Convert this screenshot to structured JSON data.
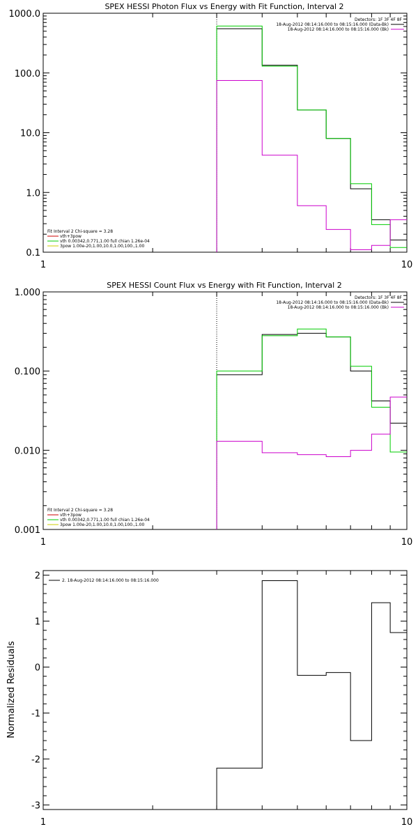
{
  "chart_data": [
    {
      "type": "line",
      "title": "SPEX HESSI Photon Flux vs Energy with Fit Function, Interval 2",
      "xscale": "log",
      "yscale": "log",
      "xlim": [
        1,
        10
      ],
      "ylim": [
        0.1,
        1000
      ],
      "xticks": [
        "1",
        "10"
      ],
      "yticks": [
        {
          "v": 1000,
          "label": "1000.0"
        },
        {
          "v": 100,
          "label": "100.0"
        },
        {
          "v": 10,
          "label": "10.0"
        },
        {
          "v": 1,
          "label": "1.0"
        },
        {
          "v": 0.1,
          "label": "0.1"
        }
      ],
      "legend_tr": {
        "header": "Detectors: 1F 3F 4F 8F",
        "entries": [
          {
            "label": "18-Aug-2012 08:14:16.000 to 08:15:16.000 (Data-Bk)",
            "color": "#000000"
          },
          {
            "label": "18-Aug-2012 08:14:16.000 to 08:15:16.000 (Bk)",
            "color": "#cc00cc"
          }
        ]
      },
      "legend_bl": {
        "header": "Fit Interval 2   Chi-square = 3.28",
        "entries": [
          {
            "label": "vth+3pow",
            "color": "#cc0000"
          },
          {
            "label": "vth 0.00342,0.771,1.00  full chian 1.26e-04",
            "color": "#00cc00"
          },
          {
            "label": "3pow 1.00e-20,1.00,10.0,1.00,100.,1.00",
            "color": "#cccc00"
          }
        ]
      },
      "vline_x": 3.0,
      "series": [
        {
          "name": "18-Aug-2012 08:14:16.000 to 08:15:16.000 (Data-Bk)",
          "color": "#000000",
          "edges": [
            3.0,
            4.0,
            5.0,
            6.0,
            7.0,
            8.0,
            9.0,
            10.0
          ],
          "values": [
            550,
            135,
            24,
            8,
            1.15,
            0.35,
            0.16
          ]
        },
        {
          "name": "vth+3pow",
          "color": "#00cc00",
          "edges": [
            3.0,
            4.0,
            5.0,
            6.0,
            7.0,
            8.0,
            9.0,
            10.0
          ],
          "values": [
            610,
            130,
            24,
            8,
            1.4,
            0.29,
            0.12
          ]
        },
        {
          "name": "18-Aug-2012 08:14:16.000 to 08:15:16.000 (Bk)",
          "color": "#cc00cc",
          "edges": [
            3.0,
            4.0,
            5.0,
            6.0,
            7.0,
            8.0,
            9.0,
            10.0
          ],
          "values": [
            75,
            4.2,
            0.6,
            0.24,
            0.11,
            0.13,
            0.35
          ]
        }
      ]
    },
    {
      "type": "line",
      "title": "SPEX HESSI Count Flux vs Energy with Fit Function, Interval 2",
      "xscale": "log",
      "yscale": "log",
      "xlim": [
        1,
        10
      ],
      "ylim": [
        0.001,
        1
      ],
      "xticks": [
        "1",
        "10"
      ],
      "yticks": [
        {
          "v": 1,
          "label": "1.000"
        },
        {
          "v": 0.1,
          "label": "0.100"
        },
        {
          "v": 0.01,
          "label": "0.010"
        },
        {
          "v": 0.001,
          "label": "0.001"
        }
      ],
      "legend_tr": {
        "header": "Detectors: 1F 3F 4F 8F",
        "entries": [
          {
            "label": "18-Aug-2012 08:14:16.000 to 08:15:16.000 (Data-Bk)",
            "color": "#000000"
          },
          {
            "label": "18-Aug-2012 08:14:16.000 to 08:15:16.000 (Bk)",
            "color": "#cc00cc"
          }
        ]
      },
      "legend_bl": {
        "header": "Fit Interval 2   Chi-square = 3.28",
        "entries": [
          {
            "label": "vth+3pow",
            "color": "#cc0000"
          },
          {
            "label": "vth 0.00342,0.771,1.00  full chian 1.26e-04",
            "color": "#00cc00"
          },
          {
            "label": "3pow 1.00e-20,1.00,10.0,1.00,100.,1.00",
            "color": "#cccc00"
          }
        ]
      },
      "vline_x": 3.0,
      "series": [
        {
          "name": "18-Aug-2012 08:14:16.000 to 08:15:16.000 (Data-Bk)",
          "color": "#000000",
          "edges": [
            3.0,
            4.0,
            5.0,
            6.0,
            7.0,
            8.0,
            9.0,
            10.0
          ],
          "values": [
            0.09,
            0.29,
            0.3,
            0.27,
            0.1,
            0.042,
            0.022
          ]
        },
        {
          "name": "vth+3pow",
          "color": "#00cc00",
          "edges": [
            3.0,
            4.0,
            5.0,
            6.0,
            7.0,
            8.0,
            9.0,
            10.0
          ],
          "values": [
            0.1,
            0.28,
            0.34,
            0.27,
            0.115,
            0.035,
            0.0095
          ]
        },
        {
          "name": "18-Aug-2012 08:14:16.000 to 08:15:16.000 (Bk)",
          "color": "#cc00cc",
          "edges": [
            3.0,
            4.0,
            5.0,
            6.0,
            7.0,
            8.0,
            9.0,
            10.0
          ],
          "values": [
            0.013,
            0.0093,
            0.0088,
            0.0083,
            0.01,
            0.016,
            0.047
          ]
        }
      ]
    },
    {
      "type": "line",
      "title": "",
      "ylabel": "Normalized Residuals",
      "xscale": "log",
      "yscale": "linear",
      "xlim": [
        1,
        10
      ],
      "ylim": [
        -3.1,
        2.1
      ],
      "xticks": [
        "1",
        "10"
      ],
      "yticks": [
        {
          "v": 2,
          "label": "2"
        },
        {
          "v": 1,
          "label": "1"
        },
        {
          "v": 0,
          "label": "0"
        },
        {
          "v": -1,
          "label": "-1"
        },
        {
          "v": -2,
          "label": "-2"
        },
        {
          "v": -3,
          "label": "-3"
        }
      ],
      "legend_tl": {
        "entries": [
          {
            "label": "2. 18-Aug-2012 08:14:16.000 to 08:15:16.000",
            "color": "#000000"
          }
        ]
      },
      "series": [
        {
          "name": "2. 18-Aug-2012 08:14:16.000 to 08:15:16.000",
          "color": "#000000",
          "edges": [
            3.0,
            4.0,
            5.0,
            6.0,
            7.0,
            8.0,
            9.0,
            10.0
          ],
          "values": [
            -2.2,
            1.88,
            -0.18,
            -0.12,
            -1.6,
            1.4,
            0.75
          ]
        }
      ]
    }
  ]
}
